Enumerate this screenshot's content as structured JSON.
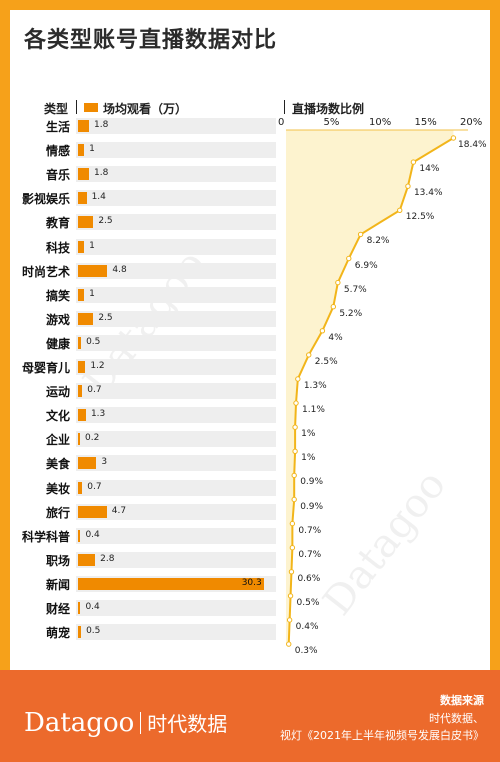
{
  "title": "各类型账号直播数据对比",
  "header": {
    "left_label": "类型",
    "legend_label": "场均观看（万）",
    "right_label": "直播场数比例"
  },
  "colors": {
    "background": "#f6a11a",
    "bar": "#f08a00",
    "line": "#f2b51a",
    "area_fill": "#fdf3cf",
    "footer": "#ec6a2c"
  },
  "chart_data": [
    {
      "type": "bar",
      "orientation": "horizontal",
      "categories": [
        "生活",
        "情感",
        "音乐",
        "影视娱乐",
        "教育",
        "科技",
        "时尚艺术",
        "搞笑",
        "游戏",
        "健康",
        "母婴育儿",
        "运动",
        "文化",
        "企业",
        "美食",
        "美妆",
        "旅行",
        "科学科普",
        "职场",
        "新闻",
        "财经",
        "萌宠"
      ],
      "values": [
        1.8,
        1,
        1.8,
        1.4,
        2.5,
        1,
        4.8,
        1,
        2.5,
        0.5,
        1.2,
        0.7,
        1.3,
        0.2,
        3,
        0.7,
        4.7,
        0.4,
        2.8,
        30.3,
        0.4,
        0.5
      ],
      "value_labels": [
        "1.8",
        "1",
        "1.8",
        "1.4",
        "2.5",
        "1",
        "4.8",
        "1",
        "2.5",
        "0.5",
        "1.2",
        "0.7",
        "1.3",
        "0.2",
        "3",
        "0.7",
        "4.7",
        "0.4",
        "2.8",
        "30.3",
        "0.4",
        "0.5"
      ],
      "series_label": "场均观看（万）"
    },
    {
      "type": "area",
      "categories": [
        "生活",
        "情感",
        "音乐",
        "影视娱乐",
        "教育",
        "科技",
        "时尚艺术",
        "搞笑",
        "游戏",
        "健康",
        "母婴育儿",
        "运动",
        "文化",
        "企业",
        "美食",
        "美妆",
        "旅行",
        "科学科普",
        "职场",
        "新闻",
        "财经",
        "萌宠"
      ],
      "values": [
        18.4,
        14,
        13.4,
        12.5,
        8.2,
        6.9,
        5.7,
        5.2,
        4,
        2.5,
        1.3,
        1.1,
        1,
        1,
        0.9,
        0.9,
        0.7,
        0.7,
        0.6,
        0.5,
        0.4,
        0.3
      ],
      "value_labels": [
        "18.4%",
        "14%",
        "13.4%",
        "12.5%",
        "8.2%",
        "6.9%",
        "5.7%",
        "5.2%",
        "4%",
        "2.5%",
        "1.3%",
        "1.1%",
        "1%",
        "1%",
        "0.9%",
        "0.9%",
        "0.7%",
        "0.7%",
        "0.6%",
        "0.5%",
        "0.4%",
        "0.3%"
      ],
      "xlim": [
        0,
        20
      ],
      "ticks": [
        "0",
        "5%",
        "10%",
        "15%",
        "20%"
      ],
      "xlabel": "直播场数比例"
    }
  ],
  "footer": {
    "logo_latin": "Datagoo",
    "logo_cn": "时代数据",
    "source_title": "数据来源",
    "source_line1": "时代数据、",
    "source_line2": "视灯《2021年上半年视频号发展白皮书》"
  }
}
